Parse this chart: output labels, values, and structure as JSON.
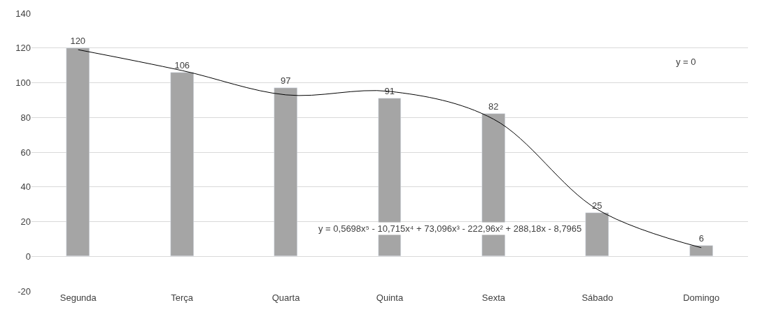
{
  "chart_data": {
    "type": "bar",
    "categories": [
      "Segunda",
      "Terça",
      "Quarta",
      "Quinta",
      "Sexta",
      "Sábado",
      "Domingo"
    ],
    "series": [
      {
        "color": "#a5a5a5",
        "values": [
          120,
          106,
          97,
          91,
          82,
          25,
          6
        ],
        "value_labels": [
          "120",
          "106",
          "97",
          "91",
          "82",
          "25",
          "6"
        ]
      },
      {
        "type": "line",
        "color": "#000000",
        "values": [
          119,
          107,
          93,
          95,
          79,
          27,
          5
        ]
      }
    ],
    "ylim": [
      -20,
      140
    ],
    "yticks": [
      -20,
      0,
      20,
      40,
      60,
      80,
      100,
      120,
      140
    ],
    "grid": "y",
    "annotations": [
      "y = 0",
      "y = 0,5698x⁵ - 10,715x⁴ + 73,096x³ - 222,96x² + 288,18x - 8,7965"
    ]
  }
}
